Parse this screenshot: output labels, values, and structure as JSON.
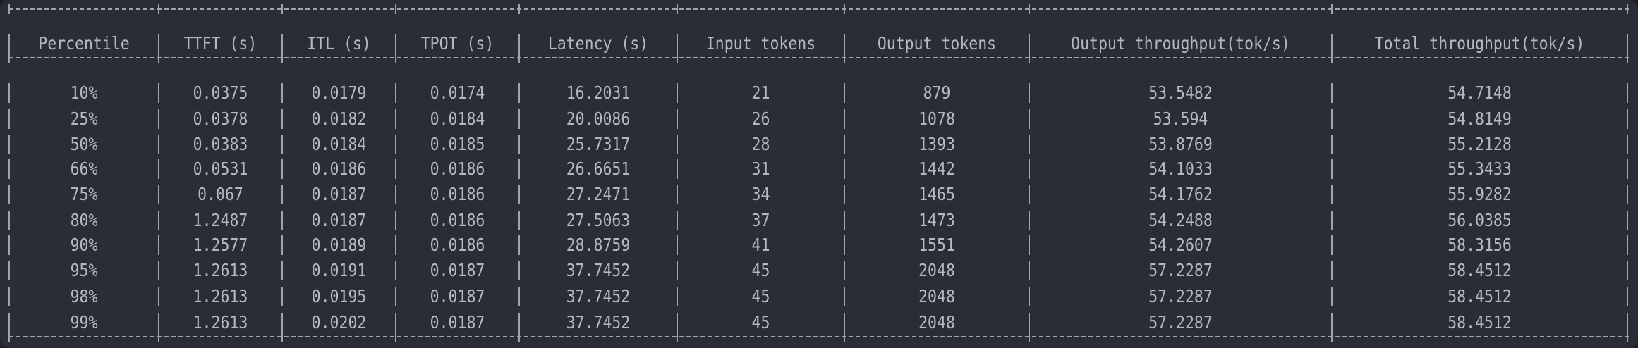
{
  "table": {
    "headers": [
      "Percentile",
      "TTFT (s)",
      "ITL (s)",
      "TPOT (s)",
      "Latency (s)",
      "Input tokens",
      "Output tokens",
      "Output throughput(tok/s)",
      "Total throughput(tok/s)"
    ],
    "rows": [
      [
        "10%",
        "0.0375",
        "0.0179",
        "0.0174",
        "16.2031",
        "21",
        "879",
        "53.5482",
        "54.7148"
      ],
      [
        "25%",
        "0.0378",
        "0.0182",
        "0.0184",
        "20.0086",
        "26",
        "1078",
        "53.594",
        "54.8149"
      ],
      [
        "50%",
        "0.0383",
        "0.0184",
        "0.0185",
        "25.7317",
        "28",
        "1393",
        "53.8769",
        "55.2128"
      ],
      [
        "66%",
        "0.0531",
        "0.0186",
        "0.0186",
        "26.6651",
        "31",
        "1442",
        "54.1033",
        "55.3433"
      ],
      [
        "75%",
        "0.067",
        "0.0187",
        "0.0186",
        "27.2471",
        "34",
        "1465",
        "54.1762",
        "55.9282"
      ],
      [
        "80%",
        "1.2487",
        "0.0187",
        "0.0186",
        "27.5063",
        "37",
        "1473",
        "54.2488",
        "56.0385"
      ],
      [
        "90%",
        "1.2577",
        "0.0189",
        "0.0186",
        "28.8759",
        "41",
        "1551",
        "54.2607",
        "58.3156"
      ],
      [
        "95%",
        "1.2613",
        "0.0191",
        "0.0187",
        "37.7452",
        "45",
        "2048",
        "57.2287",
        "58.4512"
      ],
      [
        "98%",
        "1.2613",
        "0.0195",
        "0.0187",
        "37.7452",
        "45",
        "2048",
        "57.2287",
        "58.4512"
      ],
      [
        "99%",
        "1.2613",
        "0.0202",
        "0.0187",
        "37.7452",
        "45",
        "2048",
        "57.2287",
        "58.4512"
      ]
    ]
  },
  "colors": {
    "background": "#2a2d35",
    "text": "#b3b8c3",
    "border": "#9ea4b0"
  }
}
